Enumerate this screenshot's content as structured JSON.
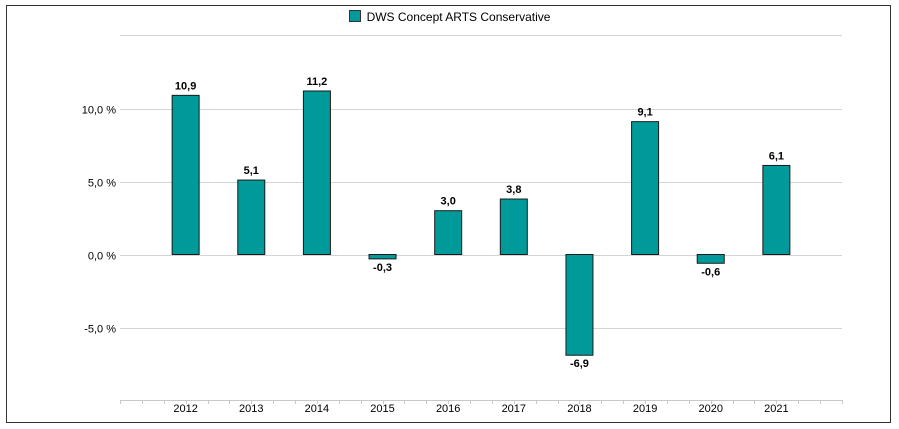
{
  "chart_data": {
    "type": "bar",
    "legend": {
      "label": "DWS Concept ARTS Conservative",
      "position": "top-center"
    },
    "categories": [
      "2012",
      "2013",
      "2014",
      "2015",
      "2016",
      "2017",
      "2018",
      "2019",
      "2020",
      "2021"
    ],
    "series": [
      {
        "name": "DWS Concept ARTS Conservative",
        "values": [
          10.9,
          5.1,
          11.2,
          -0.3,
          3.0,
          3.8,
          -6.9,
          9.1,
          -0.6,
          6.1
        ],
        "value_labels": [
          "10,9",
          "5,1",
          "11,2",
          "-0,3",
          "3,0",
          "3,8",
          "-6,9",
          "9,1",
          "-0,6",
          "6,1"
        ]
      }
    ],
    "yticks": [
      -5,
      0,
      5,
      10
    ],
    "ytick_labels": [
      "-5,0 %",
      "0,0 %",
      "5,0 %",
      "10,0 %"
    ],
    "ylim": [
      -10,
      15
    ],
    "grid": true,
    "xlabel": "",
    "ylabel": "",
    "colors": {
      "bar": "#009a9a",
      "bar_stroke": "#1a1a1a",
      "grid": "#d4d4d4"
    }
  }
}
